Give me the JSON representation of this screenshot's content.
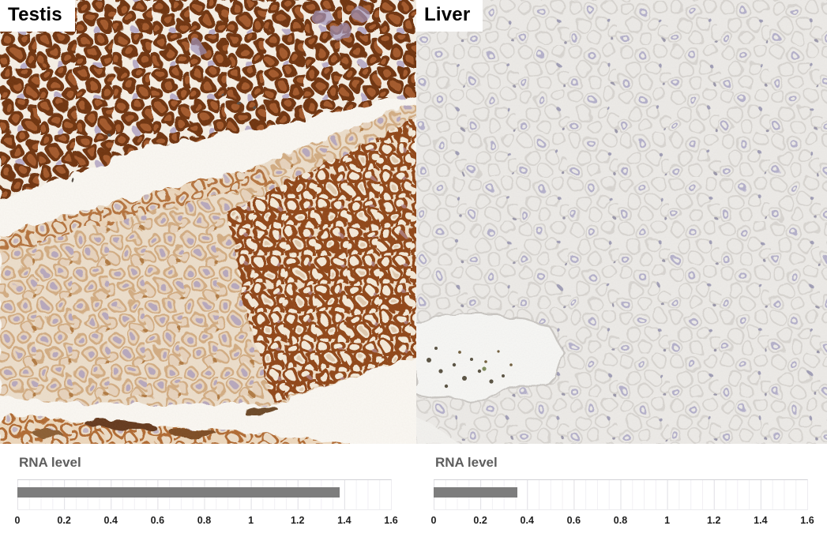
{
  "panels": [
    {
      "label": "Testis",
      "image_alt": "IHC micrograph of testis with strong brown antibody staining",
      "chart": {
        "title": "RNA level",
        "value": 1.38,
        "max": 1.6,
        "color": "#7d7d7d",
        "ticks": [
          "0",
          "0.2",
          "0.4",
          "0.6",
          "0.8",
          "1",
          "1.2",
          "1.4",
          "1.6"
        ]
      }
    },
    {
      "label": "Liver",
      "image_alt": "IHC micrograph of liver with no brown staining, pale hematoxylin counterstain",
      "chart": {
        "title": "RNA level",
        "value": 0.36,
        "max": 1.6,
        "color": "#7d7d7d",
        "ticks": [
          "0",
          "0.2",
          "0.4",
          "0.6",
          "0.8",
          "1",
          "1.2",
          "1.4",
          "1.6"
        ]
      }
    }
  ],
  "colors": {
    "bar": "#7d7d7d",
    "chart_title_text": "#5e5e5e",
    "tick_text": "#1f1f1f",
    "label_text": "#000000",
    "label_background": "#ffffff",
    "grid_minor": "#f1f0f4",
    "grid_major": "#e2e1e6",
    "testis_stain_brown": "#8a4517",
    "liver_counterstain": "#a59fc0"
  },
  "chart_data": [
    {
      "type": "bar",
      "orientation": "horizontal",
      "panel": "Testis",
      "title": "RNA level",
      "categories": [
        "RNA level"
      ],
      "values": [
        1.38
      ],
      "xlim": [
        0,
        1.6
      ],
      "xticks": [
        0,
        0.2,
        0.4,
        0.6,
        0.8,
        1,
        1.2,
        1.4,
        1.6
      ],
      "grid": true,
      "legend": false,
      "bar_color": "#7d7d7d"
    },
    {
      "type": "bar",
      "orientation": "horizontal",
      "panel": "Liver",
      "title": "RNA level",
      "categories": [
        "RNA level"
      ],
      "values": [
        0.36
      ],
      "xlim": [
        0,
        1.6
      ],
      "xticks": [
        0,
        0.2,
        0.4,
        0.6,
        0.8,
        1,
        1.2,
        1.4,
        1.6
      ],
      "grid": true,
      "legend": false,
      "bar_color": "#7d7d7d"
    }
  ]
}
